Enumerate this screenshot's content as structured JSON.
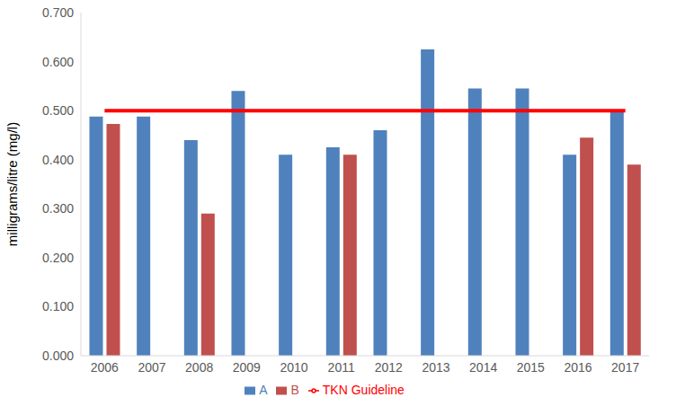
{
  "chart_data": {
    "type": "bar",
    "y_label": "milligrams/litre (mg/l)",
    "categories": [
      "2006",
      "2007",
      "2008",
      "2009",
      "2010",
      "2011",
      "2012",
      "2013",
      "2014",
      "2015",
      "2016",
      "2017"
    ],
    "series": [
      {
        "name": "A",
        "type": "bar",
        "color": "#4f81bd",
        "values": [
          0.488,
          0.488,
          0.44,
          0.54,
          0.41,
          0.425,
          0.46,
          0.625,
          0.545,
          0.545,
          0.41,
          0.5
        ]
      },
      {
        "name": "B",
        "type": "bar",
        "color": "#c0504d",
        "values": [
          0.473,
          null,
          0.29,
          null,
          null,
          0.41,
          null,
          null,
          null,
          null,
          0.445,
          0.39
        ]
      },
      {
        "name": "TKN Guideline",
        "type": "line",
        "color": "#ff0000",
        "values": [
          0.5,
          0.5,
          0.5,
          0.5,
          0.5,
          0.5,
          0.5,
          0.5,
          0.5,
          0.5,
          0.5,
          0.5
        ]
      }
    ],
    "ylim": [
      0,
      0.7
    ],
    "yticks": [
      {
        "value": 0,
        "label": "0.000"
      },
      {
        "value": 0.1,
        "label": "0.100"
      },
      {
        "value": 0.2,
        "label": "0.200"
      },
      {
        "value": 0.3,
        "label": "0.300"
      },
      {
        "value": 0.4,
        "label": "0.400"
      },
      {
        "value": 0.5,
        "label": "0.500"
      },
      {
        "value": 0.6,
        "label": "0.600"
      },
      {
        "value": 0.7,
        "label": "0.700"
      }
    ],
    "grid": false,
    "legend": "bottom"
  }
}
